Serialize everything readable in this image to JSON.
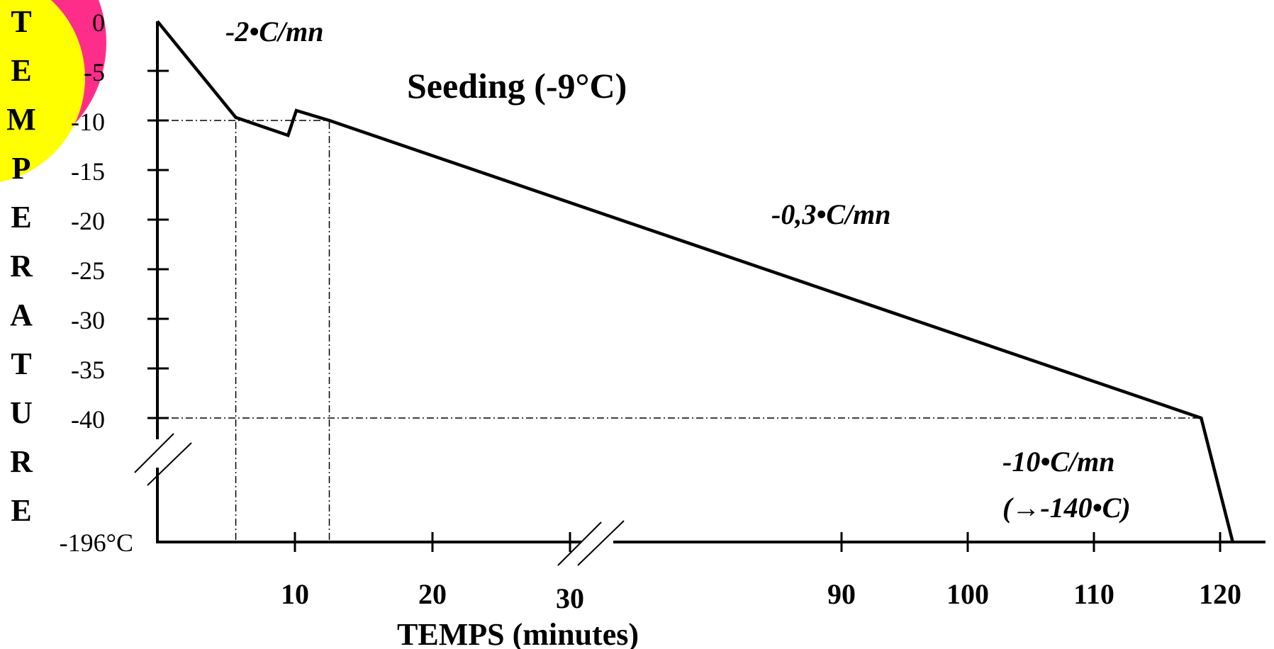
{
  "chart_data": {
    "type": "line",
    "title": "",
    "xlabel": "TEMPS (minutes)",
    "ylabel": "TEMPERATURE",
    "y_ticks": [
      "0",
      "-5",
      "-10",
      "-15",
      "-20",
      "-25",
      "-30",
      "-35",
      "-40"
    ],
    "y_bottom_label": "-196°C",
    "x_ticks": [
      "10",
      "20",
      "30",
      "90",
      "100",
      "110",
      "120"
    ],
    "x_axis_break": "between 30 and 90",
    "y_axis_break": "between -40 and -196",
    "series": [
      {
        "x": [
          0,
          5.7,
          9.5,
          10.1,
          12.5,
          118.5,
          121
        ],
        "y": [
          0,
          -9.7,
          -11.5,
          -9,
          -10,
          -40,
          -196
        ]
      }
    ],
    "reference_lines": [
      {
        "type": "horizontal",
        "y": -10,
        "x_from": 0,
        "x_to": 12.5
      },
      {
        "type": "horizontal",
        "y": -40,
        "x_from": 0,
        "x_to": 118.5
      },
      {
        "type": "vertical",
        "x": 5.7
      },
      {
        "type": "vertical",
        "x": 12.5
      }
    ],
    "annotations": {
      "rate_initial": "-2•C/mn",
      "seeding": "Seeding (-9°C)",
      "rate_slow": "-0,3•C/mn",
      "rate_fast_line1": "-10•C/mn",
      "rate_fast_line2": "(→-140•C)"
    },
    "colors": {
      "line": "#000000",
      "corner_outer": "#ff2d8a",
      "corner_inner": "#ffff00"
    },
    "grid": false,
    "legend": "none"
  }
}
